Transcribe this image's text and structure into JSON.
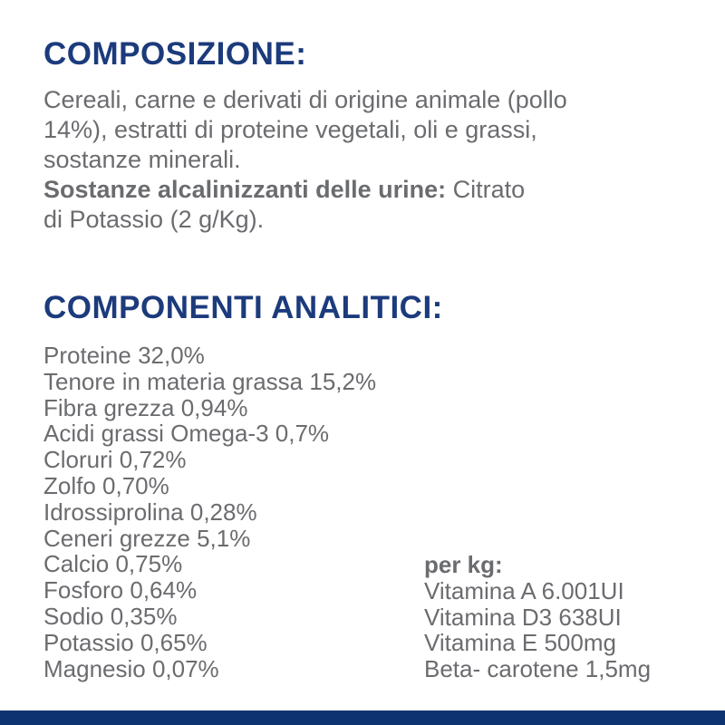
{
  "page": {
    "colors": {
      "heading_navy": "#1c3b7c",
      "body_gray": "#6b6c6f",
      "footer_bar_navy": "#0d3471",
      "background": "#ffffff"
    }
  },
  "composition": {
    "heading": "COMPOSIZIONE:",
    "lines": [
      "Cereali, carne e derivati di origine animale (pollo",
      "14%), estratti di proteine vegetali, oli e grassi,",
      "sostanze minerali."
    ],
    "alkalinizing_bold": "Sostanze alcalinizzanti delle urine:",
    "alkalinizing_tail": " Citrato",
    "alkalinizing_line2": "di Potassio (2 g/Kg)."
  },
  "analytical": {
    "heading": "COMPONENTI ANALITICI:",
    "items": [
      "Proteine 32,0%",
      "Tenore in materia grassa 15,2%",
      "Fibra grezza 0,94%",
      "Acidi grassi Omega-3 0,7%",
      "Cloruri 0,72%",
      "Zolfo 0,70%",
      "Idrossiprolina 0,28%",
      "Ceneri grezze 5,1%",
      "Calcio 0,75%",
      "Fosforo 0,64%",
      "Sodio 0,35%",
      "Potassio 0,65%",
      "Magnesio 0,07%"
    ],
    "per_kg": {
      "heading": "per kg:",
      "items": [
        "Vitamina A 6.001UI",
        "Vitamina D3 638UI",
        "Vitamina E 500mg",
        "Beta- carotene 1,5mg"
      ]
    }
  }
}
